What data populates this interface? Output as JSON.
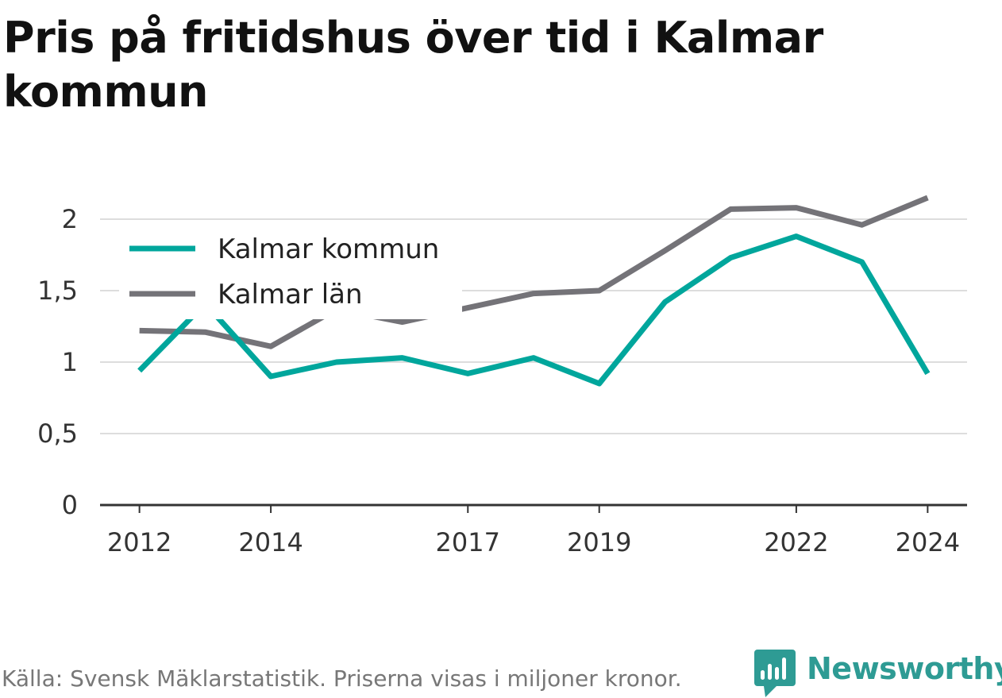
{
  "title": "Pris på fritidshus över tid i Kalmar kommun",
  "source": "Källa: Svensk Mäklarstatistik. Priserna visas i miljoner kronor.",
  "brand": "Newsworthy",
  "colors": {
    "kommun": "#00a69c",
    "lan": "#747378",
    "grid": "#dddddd",
    "axis": "#333333",
    "brand": "#2e9b94"
  },
  "chart_data": {
    "type": "line",
    "title": "Pris på fritidshus över tid i Kalmar kommun",
    "x": [
      2012,
      2013,
      2014,
      2015,
      2016,
      2017,
      2018,
      2019,
      2020,
      2021,
      2022,
      2023,
      2024
    ],
    "x_ticks": [
      2012,
      2014,
      2017,
      2019,
      2022,
      2024
    ],
    "x_tick_labels": [
      "2012",
      "2014",
      "2017",
      "2019",
      "2022",
      "2024"
    ],
    "y_ticks": [
      0,
      0.5,
      1,
      1.5,
      2
    ],
    "y_tick_labels": [
      "0",
      "0,5",
      "1",
      "1,5",
      "2"
    ],
    "ylim": [
      0,
      2.2
    ],
    "xlim": [
      2011.4,
      2024.6
    ],
    "grid": true,
    "legend_position": "top-left",
    "series": [
      {
        "name": "Kalmar kommun",
        "color": "#00a69c",
        "values": [
          0.94,
          1.41,
          0.9,
          1.0,
          1.03,
          0.92,
          1.03,
          0.85,
          1.42,
          1.73,
          1.88,
          1.7,
          0.92
        ]
      },
      {
        "name": "Kalmar län",
        "color": "#747378",
        "values": [
          1.22,
          1.21,
          1.11,
          1.37,
          1.28,
          1.38,
          1.48,
          1.5,
          1.78,
          2.07,
          2.08,
          1.96,
          2.15
        ]
      }
    ]
  }
}
